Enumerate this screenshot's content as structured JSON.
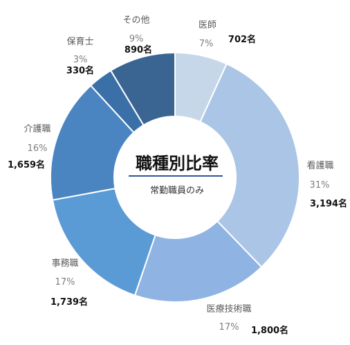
{
  "chart_data": {
    "type": "pie",
    "title": "職種別比率",
    "subtitle": "常勤職員のみ",
    "slices": [
      {
        "label": "医師",
        "percent": "7%",
        "count": "702名",
        "value": 702,
        "color": "#c6d7ea"
      },
      {
        "label": "看護職",
        "percent": "31%",
        "count": "3,194名",
        "value": 3194,
        "color": "#aac5e6"
      },
      {
        "label": "医療技術職",
        "percent": "17%",
        "count": "1,800名",
        "value": 1800,
        "color": "#8fb3e2"
      },
      {
        "label": "事務職",
        "percent": "17%",
        "count": "1,739名",
        "value": 1739,
        "color": "#5b9bd5"
      },
      {
        "label": "介護職",
        "percent": "16%",
        "count": "1,659名",
        "value": 1659,
        "color": "#4a85c2"
      },
      {
        "label": "保育士",
        "percent": "3%",
        "count": "330名",
        "value": 330,
        "color": "#3b6fa8"
      },
      {
        "label": "その他",
        "percent": "9%",
        "count": "890名",
        "value": 890,
        "color": "#3a6593"
      }
    ]
  }
}
